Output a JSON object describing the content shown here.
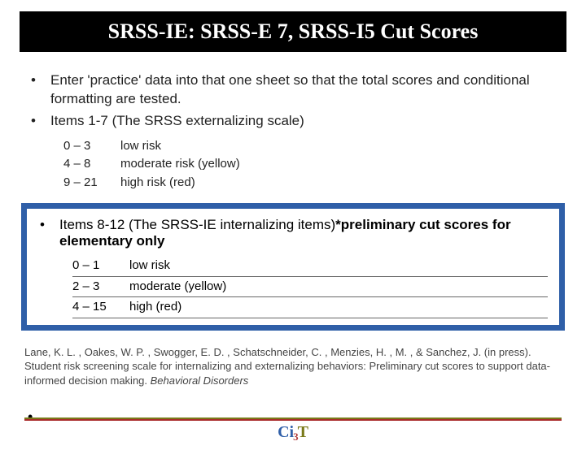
{
  "title": "SRSS-IE: SRSS-E 7, SRSS-I5 Cut Scores",
  "bullets": {
    "b1": "Enter 'practice' data into that one sheet so that the total scores and conditional formatting are tested.",
    "b2": "Items 1-7 (The SRSS externalizing scale)",
    "b3_prefix": "Items 8-12 (The SRSS-IE internalizing items)",
    "b3_bold": "*preliminary cut scores for elementary only"
  },
  "ext_rows": [
    {
      "range": "0 – 3",
      "label": "low risk"
    },
    {
      "range": "4 – 8",
      "label": "moderate risk (yellow)"
    },
    {
      "range": "9 – 21",
      "label": "high risk (red)"
    }
  ],
  "int_rows": [
    {
      "range": "0 – 1",
      "label": "low risk"
    },
    {
      "range": "2 – 3",
      "label": "moderate (yellow)"
    },
    {
      "range": "4 – 15",
      "label": "high (red)"
    }
  ],
  "citation_plain": "Lane, K. L. , Oakes, W. P. , Swogger, E. D. , Schatschneider, C. , Menzies, H. , M. , & Sanchez, J. (in press). Student risk screening scale for internalizing and externalizing behaviors: Preliminary cut scores to support data-informed decision making. ",
  "citation_ital": "Behavioral Disorders",
  "logo": {
    "ci": "Ci",
    "three": "3",
    "t": "T"
  },
  "colors": {
    "box_border": "#2f5fa8",
    "title_bg": "#000000",
    "olive": "#7a7a1a",
    "red": "#aa2b2b"
  }
}
